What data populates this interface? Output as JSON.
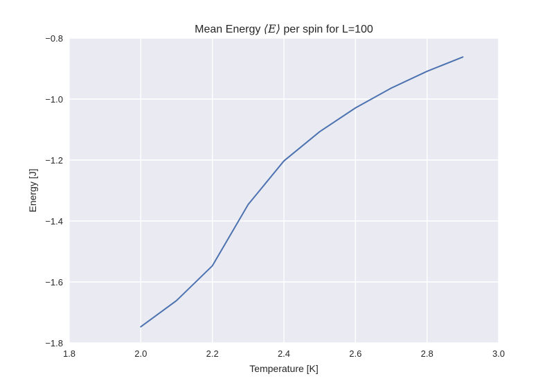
{
  "chart_data": {
    "type": "line",
    "title": {
      "prefix": "Mean Energy ",
      "math": "⟨E⟩",
      "suffix": " per spin for L=100"
    },
    "xlabel": "Temperature [K]",
    "ylabel": "Energy [J]",
    "xlim": [
      1.8,
      3.0
    ],
    "ylim": [
      -1.8,
      -0.8
    ],
    "xticks": [
      1.8,
      2.0,
      2.2,
      2.4,
      2.6,
      2.8,
      3.0
    ],
    "yticks": [
      -1.8,
      -1.6,
      -1.4,
      -1.2,
      -1.0,
      -0.8
    ],
    "xtick_labels": [
      "1.8",
      "2.0",
      "2.2",
      "2.4",
      "2.6",
      "2.8",
      "3.0"
    ],
    "ytick_labels": [
      "−1.8",
      "−1.6",
      "−1.4",
      "−1.2",
      "−1.0",
      "−0.8"
    ],
    "grid": true,
    "background_color": "#eaeaf2",
    "grid_color": "#ffffff",
    "series": [
      {
        "color": "#4c72b0",
        "x": [
          2.0,
          2.1,
          2.2,
          2.3,
          2.4,
          2.5,
          2.6,
          2.7,
          2.8,
          2.9
        ],
        "y": [
          -1.747,
          -1.661,
          -1.547,
          -1.346,
          -1.203,
          -1.107,
          -1.029,
          -0.964,
          -0.909,
          -0.862
        ]
      }
    ]
  }
}
